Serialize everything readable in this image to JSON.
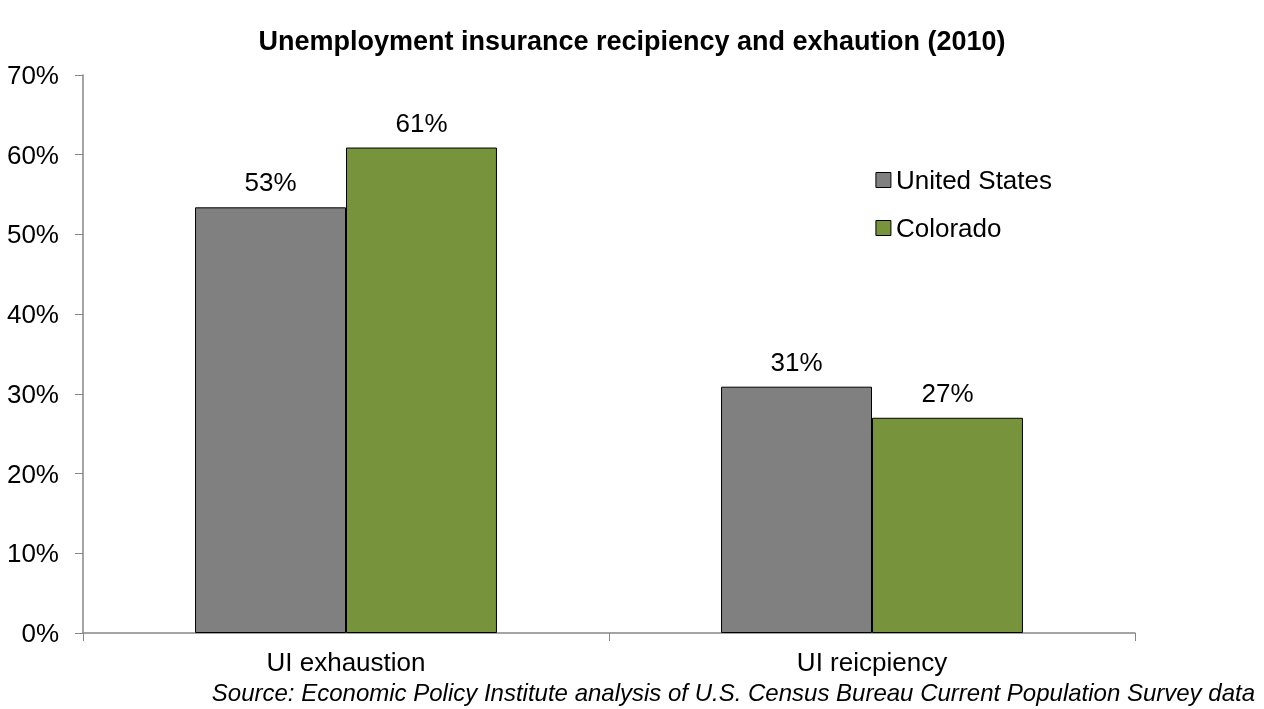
{
  "chart_data": {
    "type": "bar",
    "title": "Unemployment insurance recipiency and exhaution (2010)",
    "categories": [
      "UI exhaustion",
      "UI reicpiency"
    ],
    "series": [
      {
        "name": "United States",
        "color": "#808080",
        "values": [
          53.4,
          30.9
        ],
        "value_labels": [
          "53%",
          "31%"
        ]
      },
      {
        "name": "Colorado",
        "color": "#77933c",
        "values": [
          60.9,
          27.0
        ],
        "value_labels": [
          "61%",
          "27%"
        ]
      }
    ],
    "ylim": [
      0,
      70
    ],
    "yticks": [
      {
        "value": 0,
        "label": "0%"
      },
      {
        "value": 10,
        "label": "10%"
      },
      {
        "value": 20,
        "label": "20%"
      },
      {
        "value": 30,
        "label": "30%"
      },
      {
        "value": 40,
        "label": "40%"
      },
      {
        "value": 50,
        "label": "50%"
      },
      {
        "value": 60,
        "label": "60%"
      },
      {
        "value": 70,
        "label": "70%"
      }
    ],
    "grid": false,
    "legend": "top right",
    "annotations": [
      "Source: Economic Policy Institute analysis of U.S. Census Bureau Current Population Survey data"
    ]
  }
}
